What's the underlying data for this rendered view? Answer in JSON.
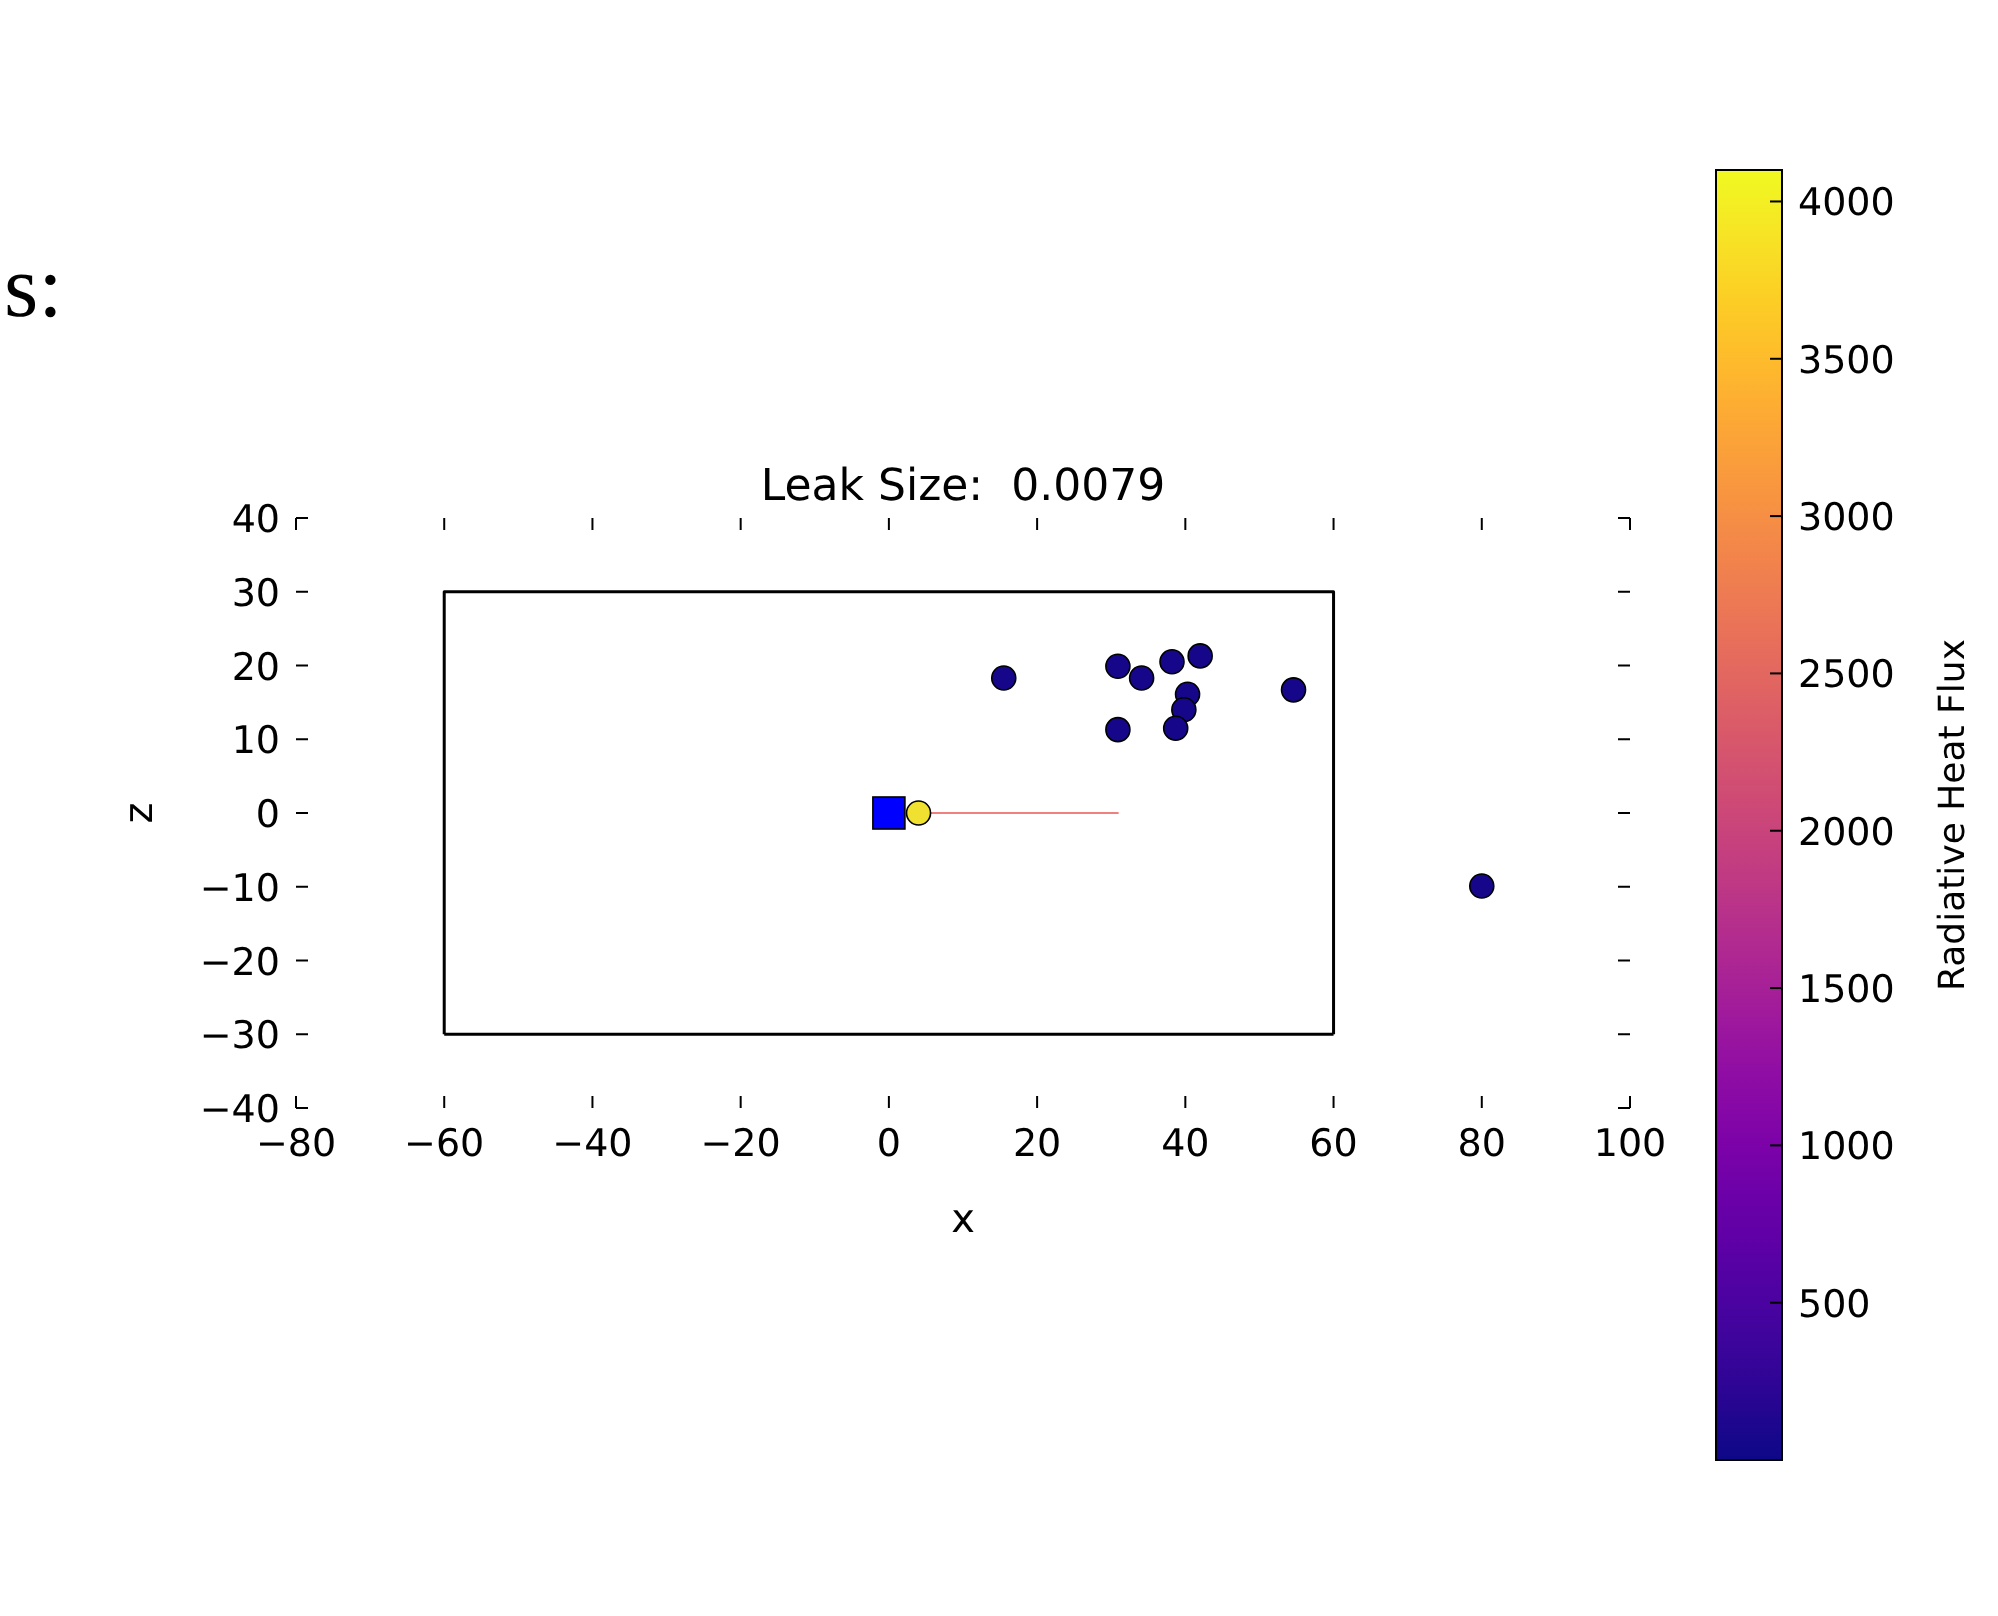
{
  "chart_data": {
    "type": "scatter",
    "title": "Leak Size:  0.0079",
    "xlabel": "x",
    "ylabel": "z",
    "clabel": "Radiative Heat Flux",
    "annotations": [
      "s:"
    ],
    "xlim": [
      -80,
      100
    ],
    "xticks": [
      {
        "value": -80,
        "label": "−80"
      },
      {
        "value": -60,
        "label": "−60"
      },
      {
        "value": -40,
        "label": "−40"
      },
      {
        "value": -20,
        "label": "−20"
      },
      0,
      20,
      40,
      60,
      80,
      100
    ],
    "ylim": [
      -40,
      40
    ],
    "yticks": [
      {
        "value": -40,
        "label": "−40"
      },
      {
        "value": -30,
        "label": "−30"
      },
      {
        "value": -20,
        "label": "−20"
      },
      {
        "value": -10,
        "label": "−10"
      },
      0,
      10,
      20,
      30,
      40
    ],
    "clim": [
      0,
      4100
    ],
    "cticks": [
      500,
      1000,
      1500,
      2000,
      2500,
      3000,
      3500,
      4000
    ],
    "grid": false,
    "series": [
      {
        "type": "line",
        "color": "#000000",
        "marker": "none",
        "x": [
          -60,
          -60,
          60,
          60
        ],
        "values": [
          -30,
          30,
          30,
          -30
        ]
      },
      {
        "type": "line",
        "color": "#000000",
        "marker": "none",
        "x": [
          -60,
          60
        ],
        "values": [
          -30,
          -30
        ]
      },
      {
        "type": "line",
        "color": "#f08080",
        "marker": "none",
        "x": [
          4,
          31
        ],
        "values": [
          0,
          0
        ]
      },
      {
        "type": "scatter",
        "marker": "circle",
        "x": [
          15.5,
          30.9,
          34.1,
          38.2,
          42.0,
          40.3,
          39.8,
          38.7,
          30.9,
          54.6,
          80.0
        ],
        "values": [
          18.3,
          19.9,
          18.3,
          20.5,
          21.3,
          16.1,
          14.0,
          11.5,
          11.3,
          16.7,
          -9.9
        ],
        "cvalues": [
          50,
          50,
          50,
          50,
          50,
          50,
          50,
          50,
          50,
          50,
          50
        ]
      },
      {
        "type": "scatter",
        "marker": "square",
        "color": "#0000ff",
        "x": [
          0
        ],
        "values": [
          0
        ]
      },
      {
        "type": "scatter",
        "marker": "circle",
        "color": "#f0e030",
        "x": [
          4
        ],
        "values": [
          0
        ]
      }
    ]
  }
}
